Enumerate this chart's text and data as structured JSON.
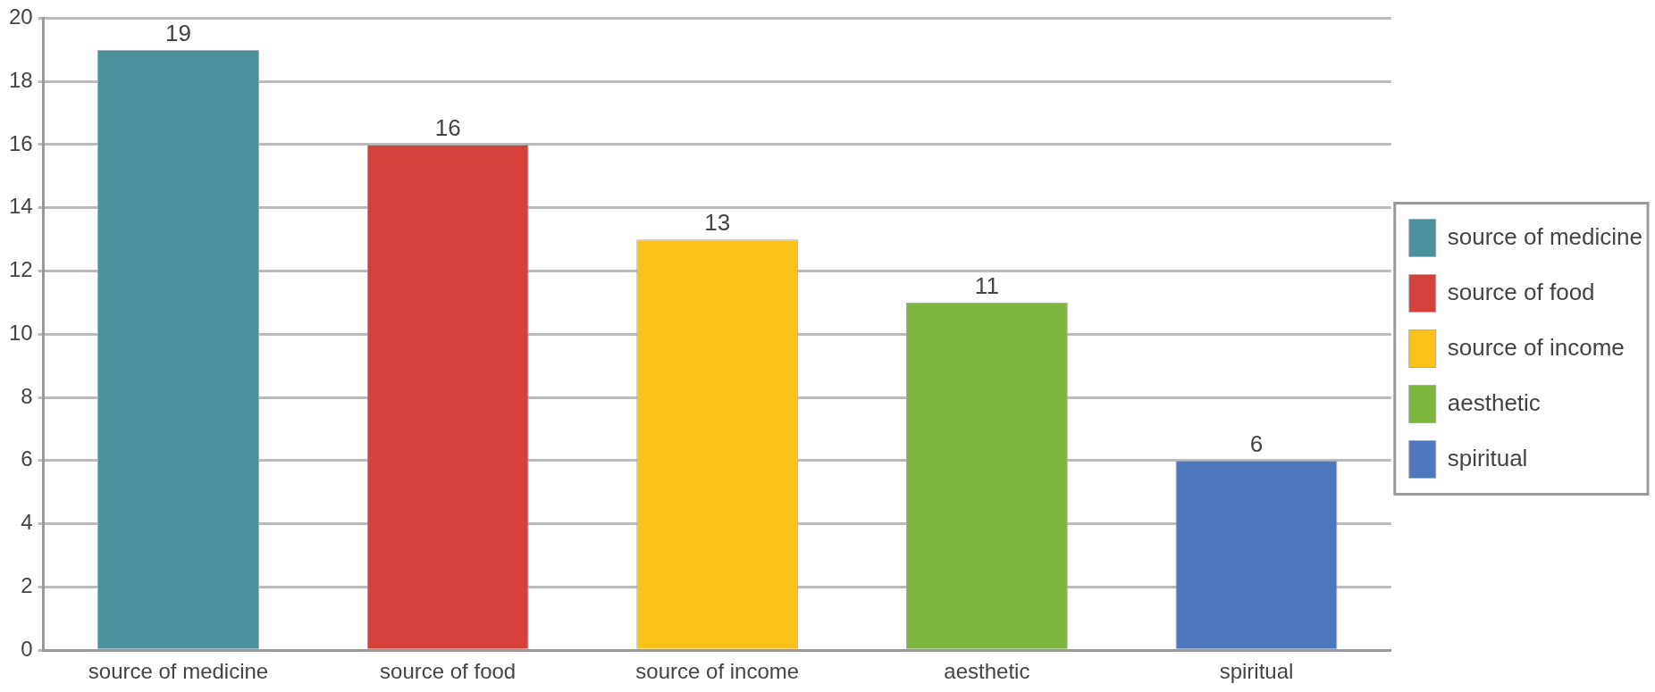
{
  "chart_data": {
    "type": "bar",
    "categories": [
      "source of medicine",
      "source of food",
      "source of income",
      "aesthetic",
      "spiritual"
    ],
    "series": [
      {
        "name": "source of medicine",
        "color": "#4a919b",
        "values": [
          19,
          null,
          null,
          null,
          null
        ]
      },
      {
        "name": "source of food",
        "color": "#d4403a",
        "values": [
          null,
          16,
          null,
          null,
          null
        ]
      },
      {
        "name": "source of income",
        "color": "#fbc21a",
        "values": [
          null,
          null,
          13,
          null,
          null
        ]
      },
      {
        "name": "aesthetic",
        "color": "#7db53e",
        "values": [
          null,
          null,
          null,
          11,
          null
        ]
      },
      {
        "name": "spiritual",
        "color": "#4e78be",
        "values": [
          null,
          null,
          null,
          null,
          6
        ]
      }
    ],
    "ylim": [
      0,
      20
    ],
    "yticks": [
      0,
      2,
      4,
      6,
      8,
      10,
      12,
      14,
      16,
      18,
      20
    ],
    "grid": "y",
    "legend": "right",
    "data_labels": true
  }
}
